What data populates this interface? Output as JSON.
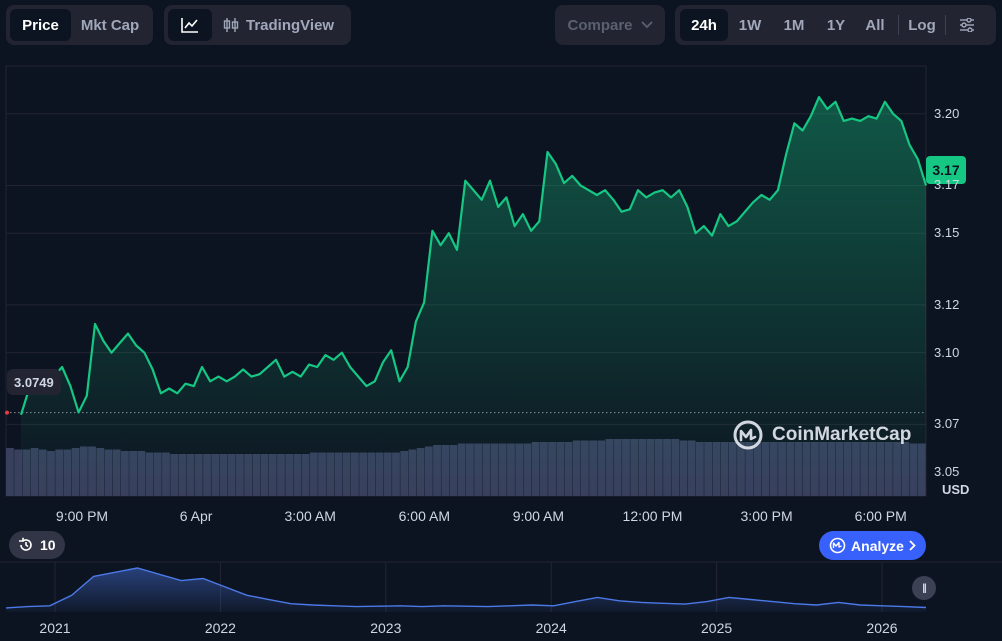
{
  "toolbar": {
    "metric_tabs": [
      {
        "label": "Price",
        "active": true
      },
      {
        "label": "Mkt Cap",
        "active": false
      }
    ],
    "chart_mode": {
      "line_icon": "line-chart-icon",
      "tradingview_icon": "candlestick-icon",
      "tradingview_label": "TradingView"
    },
    "compare_label": "Compare",
    "ranges": [
      {
        "label": "24h",
        "active": true
      },
      {
        "label": "1W",
        "active": false
      },
      {
        "label": "1M",
        "active": false
      },
      {
        "label": "1Y",
        "active": false
      },
      {
        "label": "All",
        "active": false
      }
    ],
    "log_label": "Log",
    "settings_icon": "sliders-icon"
  },
  "price_tag": "3.17",
  "open_price_tag": "3.0749",
  "currency": "USD",
  "watermark": "CoinMarketCap",
  "history_count": "10",
  "analyze_label": "Analyze",
  "colors": {
    "up": "#16c784",
    "background": "#0d1421",
    "volume": "#38405e",
    "navigator": "#4b79e8",
    "accent": "#3861fb"
  },
  "navigator": {
    "years": [
      "2021",
      "2022",
      "2023",
      "2024",
      "2025",
      "2026"
    ],
    "trend": [
      0.05,
      0.08,
      0.1,
      0.35,
      0.8,
      0.9,
      1.0,
      0.85,
      0.7,
      0.75,
      0.55,
      0.35,
      0.25,
      0.15,
      0.12,
      0.1,
      0.08,
      0.09,
      0.1,
      0.08,
      0.1,
      0.09,
      0.08,
      0.1,
      0.12,
      0.1,
      0.2,
      0.3,
      0.22,
      0.18,
      0.16,
      0.14,
      0.2,
      0.3,
      0.25,
      0.2,
      0.15,
      0.12,
      0.18,
      0.12,
      0.1,
      0.08,
      0.06
    ]
  },
  "chart_data": {
    "type": "area",
    "ylim": [
      3.04,
      3.22
    ],
    "yticks": [
      "3.20",
      "3.17",
      "3.15",
      "3.12",
      "3.10",
      "3.07",
      "3.05"
    ],
    "xtick_labels": [
      "9:00 PM",
      "6 Apr",
      "3:00 AM",
      "6:00 AM",
      "9:00 AM",
      "12:00 PM",
      "3:00 PM",
      "6:00 PM"
    ],
    "open_price": 3.0749,
    "last_price": 3.17,
    "series": [
      {
        "values": [
          3.074,
          3.085,
          3.083,
          3.088,
          3.09,
          3.094,
          3.086,
          3.075,
          3.082,
          3.112,
          3.105,
          3.1,
          3.104,
          3.108,
          3.103,
          3.1,
          3.093,
          3.083,
          3.085,
          3.083,
          3.087,
          3.086,
          3.094,
          3.088,
          3.09,
          3.088,
          3.09,
          3.093,
          3.09,
          3.091,
          3.094,
          3.097,
          3.09,
          3.092,
          3.09,
          3.095,
          3.094,
          3.099,
          3.097,
          3.1,
          3.094,
          3.09,
          3.086,
          3.088,
          3.096,
          3.101,
          3.088,
          3.094,
          3.113,
          3.121,
          3.151,
          3.145,
          3.15,
          3.143,
          3.172,
          3.168,
          3.164,
          3.172,
          3.161,
          3.165,
          3.153,
          3.158,
          3.151,
          3.155,
          3.184,
          3.179,
          3.171,
          3.174,
          3.17,
          3.168,
          3.166,
          3.168,
          3.164,
          3.159,
          3.16,
          3.168,
          3.165,
          3.167,
          3.168,
          3.165,
          3.168,
          3.161,
          3.15,
          3.153,
          3.149,
          3.158,
          3.153,
          3.155,
          3.159,
          3.163,
          3.166,
          3.164,
          3.168,
          3.183,
          3.196,
          3.193,
          3.199,
          3.207,
          3.202,
          3.205,
          3.197,
          3.198,
          3.197,
          3.199,
          3.198,
          3.205,
          3.2,
          3.197,
          3.187,
          3.181,
          3.17
        ]
      }
    ],
    "volume": [
      0.32,
      0.31,
      0.31,
      0.32,
      0.31,
      0.3,
      0.31,
      0.31,
      0.32,
      0.33,
      0.33,
      0.32,
      0.31,
      0.31,
      0.3,
      0.3,
      0.3,
      0.29,
      0.29,
      0.29,
      0.28,
      0.28,
      0.28,
      0.28,
      0.28,
      0.28,
      0.28,
      0.28,
      0.28,
      0.28,
      0.28,
      0.28,
      0.28,
      0.28,
      0.28,
      0.28,
      0.28,
      0.29,
      0.29,
      0.29,
      0.29,
      0.29,
      0.29,
      0.29,
      0.29,
      0.29,
      0.29,
      0.29,
      0.3,
      0.31,
      0.32,
      0.33,
      0.34,
      0.34,
      0.34,
      0.35,
      0.35,
      0.35,
      0.35,
      0.35,
      0.35,
      0.35,
      0.35,
      0.35,
      0.36,
      0.36,
      0.36,
      0.36,
      0.36,
      0.37,
      0.37,
      0.37,
      0.37,
      0.38,
      0.38,
      0.38,
      0.38,
      0.38,
      0.38,
      0.38,
      0.38,
      0.38,
      0.37,
      0.37,
      0.36,
      0.36,
      0.36,
      0.36,
      0.36,
      0.36,
      0.36,
      0.36,
      0.36,
      0.36,
      0.36,
      0.36,
      0.36,
      0.36,
      0.36,
      0.36,
      0.36,
      0.36,
      0.36,
      0.36,
      0.36,
      0.36,
      0.36,
      0.36,
      0.36,
      0.36,
      0.35,
      0.35
    ]
  }
}
